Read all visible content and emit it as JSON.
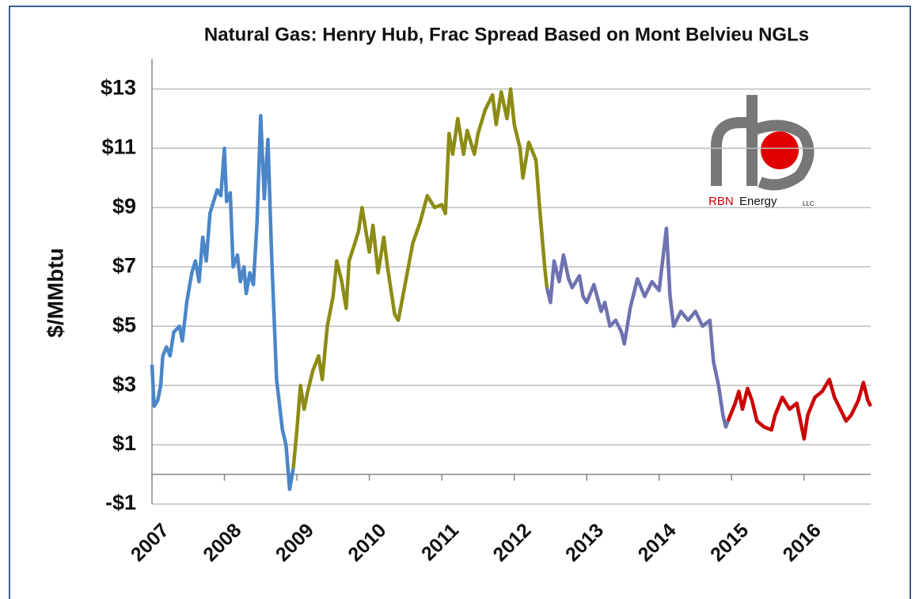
{
  "chart_data": {
    "type": "line",
    "title": "Natural Gas: Henry Hub, Frac Spread Based on Mont Belvieu NGLs",
    "ylabel": "$/MMbtu",
    "xlim": [
      2007,
      2016.92
    ],
    "xticks": [
      2007,
      2008,
      2009,
      2010,
      2011,
      2012,
      2013,
      2014,
      2015,
      2016
    ],
    "ylim": [
      -1,
      14
    ],
    "yticks": [
      {
        "value": 13,
        "label": "$13"
      },
      {
        "value": 11,
        "label": "$11"
      },
      {
        "value": 9,
        "label": "$9"
      },
      {
        "value": 7,
        "label": "$7"
      },
      {
        "value": 5,
        "label": "$5"
      },
      {
        "value": 3,
        "label": "$3"
      },
      {
        "value": 1,
        "label": "$1"
      },
      {
        "value": -1,
        "label": "-$1"
      }
    ],
    "grid": true,
    "logo": {
      "red": "RBN",
      "dark": "Energy",
      "small": "LLC"
    },
    "series": [
      {
        "color": "#4a86c8",
        "x": [
          2007.0,
          2007.03,
          2007.08,
          2007.12,
          2007.15,
          2007.2,
          2007.25,
          2007.3,
          2007.38,
          2007.42,
          2007.48,
          2007.55,
          2007.6,
          2007.65,
          2007.7,
          2007.75,
          2007.8,
          2007.85,
          2007.9,
          2007.95,
          2008.0,
          2008.03,
          2008.08,
          2008.12,
          2008.18,
          2008.22,
          2008.27,
          2008.3,
          2008.35,
          2008.4,
          2008.45,
          2008.5,
          2008.55,
          2008.6,
          2008.65,
          2008.72,
          2008.8,
          2008.85,
          2008.9,
          2008.95
        ],
        "values": [
          3.7,
          2.3,
          2.5,
          3.0,
          4.0,
          4.3,
          4.0,
          4.8,
          5.0,
          4.5,
          5.8,
          6.8,
          7.2,
          6.5,
          8.0,
          7.2,
          8.8,
          9.2,
          9.6,
          9.4,
          11.0,
          9.2,
          9.5,
          7.0,
          7.4,
          6.5,
          7.0,
          6.1,
          6.8,
          6.4,
          8.5,
          12.1,
          9.3,
          11.3,
          7.5,
          3.2,
          1.5,
          1.0,
          -0.5,
          0.2
        ]
      },
      {
        "color": "#8c8c14",
        "x": [
          2008.95,
          2009.0,
          2009.05,
          2009.1,
          2009.15,
          2009.22,
          2009.3,
          2009.35,
          2009.42,
          2009.5,
          2009.55,
          2009.62,
          2009.68,
          2009.72,
          2009.8,
          2009.85,
          2009.9,
          2010.0,
          2010.05,
          2010.12,
          2010.2,
          2010.25,
          2010.35,
          2010.4,
          2010.5,
          2010.6,
          2010.7,
          2010.8,
          2010.9,
          2011.0,
          2011.05,
          2011.1,
          2011.15,
          2011.22,
          2011.3,
          2011.35,
          2011.45,
          2011.5,
          2011.6,
          2011.7,
          2011.75,
          2011.82,
          2011.9,
          2011.95,
          2012.0,
          2012.08,
          2012.12,
          2012.2,
          2012.3,
          2012.35,
          2012.42,
          2012.45
        ],
        "values": [
          0.2,
          1.5,
          3.0,
          2.2,
          2.8,
          3.5,
          4.0,
          3.2,
          5.0,
          6.0,
          7.2,
          6.5,
          5.6,
          7.2,
          7.8,
          8.2,
          9.0,
          7.5,
          8.4,
          6.8,
          8.0,
          7.0,
          5.4,
          5.2,
          6.5,
          7.8,
          8.5,
          9.4,
          9.0,
          9.1,
          8.8,
          11.5,
          10.8,
          12.0,
          10.8,
          11.6,
          10.8,
          11.5,
          12.3,
          12.8,
          11.8,
          12.9,
          12.0,
          13.0,
          11.8,
          11.0,
          10.0,
          11.2,
          10.6,
          9.0,
          7.0,
          6.3
        ]
      },
      {
        "color": "#6f72b0",
        "x": [
          2012.45,
          2012.5,
          2012.55,
          2012.62,
          2012.68,
          2012.75,
          2012.8,
          2012.9,
          2012.95,
          2013.0,
          2013.1,
          2013.2,
          2013.25,
          2013.32,
          2013.4,
          2013.48,
          2013.52,
          2013.6,
          2013.7,
          2013.8,
          2013.9,
          2014.0,
          2014.1,
          2014.15,
          2014.2,
          2014.3,
          2014.4,
          2014.5,
          2014.6,
          2014.7,
          2014.75,
          2014.82,
          2014.88,
          2014.92,
          2014.95
        ],
        "values": [
          6.3,
          5.8,
          7.2,
          6.5,
          7.4,
          6.6,
          6.3,
          6.7,
          6.0,
          5.8,
          6.4,
          5.5,
          5.8,
          5.0,
          5.2,
          4.8,
          4.4,
          5.6,
          6.6,
          6.0,
          6.5,
          6.2,
          8.3,
          6.0,
          5.0,
          5.5,
          5.2,
          5.5,
          5.0,
          5.2,
          3.8,
          3.0,
          2.0,
          1.6,
          1.8
        ]
      },
      {
        "color": "#cc0000",
        "x": [
          2014.95,
          2015.05,
          2015.1,
          2015.15,
          2015.22,
          2015.28,
          2015.35,
          2015.45,
          2015.55,
          2015.6,
          2015.7,
          2015.8,
          2015.9,
          2016.0,
          2016.05,
          2016.15,
          2016.25,
          2016.35,
          2016.42,
          2016.5,
          2016.58,
          2016.65,
          2016.75,
          2016.82,
          2016.88,
          2016.92
        ],
        "values": [
          1.8,
          2.4,
          2.8,
          2.2,
          2.9,
          2.5,
          1.8,
          1.6,
          1.5,
          2.0,
          2.6,
          2.2,
          2.4,
          1.2,
          2.0,
          2.6,
          2.8,
          3.2,
          2.6,
          2.2,
          1.8,
          2.0,
          2.5,
          3.1,
          2.5,
          2.3
        ]
      }
    ]
  }
}
